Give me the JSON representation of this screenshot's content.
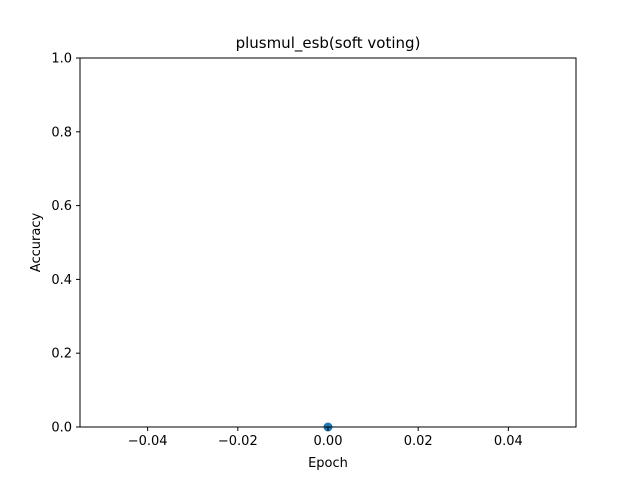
{
  "chart_data": {
    "type": "scatter",
    "title": "plusmul_esb(soft voting)",
    "xlabel": "Epoch",
    "ylabel": "Accuracy",
    "xlim": [
      -0.055,
      0.055
    ],
    "ylim": [
      0.0,
      1.0
    ],
    "xticks": [
      -0.04,
      -0.02,
      0.0,
      0.02,
      0.04
    ],
    "xtick_labels": [
      "−0.04",
      "−0.02",
      "0.00",
      "0.02",
      "0.04"
    ],
    "yticks": [
      0.0,
      0.2,
      0.4,
      0.6,
      0.8,
      1.0
    ],
    "ytick_labels": [
      "0.0",
      "0.2",
      "0.4",
      "0.6",
      "0.8",
      "1.0"
    ],
    "grid": false,
    "series": [
      {
        "x": [
          0
        ],
        "y": [
          0.0
        ],
        "color": "#1f77b4"
      }
    ]
  }
}
